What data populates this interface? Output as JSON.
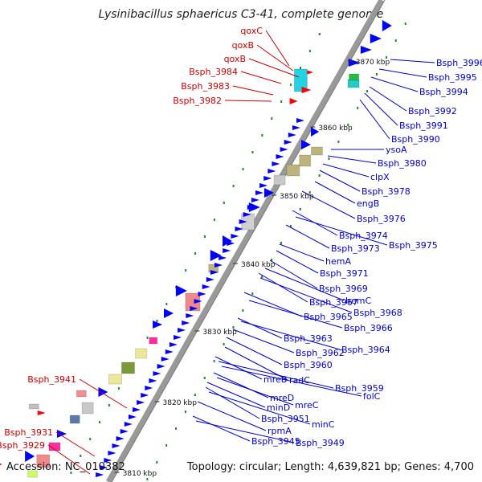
{
  "title": "Lysinibacillus sphaericus C3-41, complete genome",
  "footer": {
    "accession": "Accession: NC_010382",
    "summary": "Topology: circular; Length: 4,639,821 bp; Genes: 4,700"
  },
  "colors": {
    "forward_gene": "#ff0000",
    "reverse_gene": "#0000ff",
    "label_left": "#cc0000",
    "label_right": "#0000cc",
    "backbone": "#999999",
    "tick_dot": "#228822"
  },
  "ticks": [
    {
      "label": "3870 kbp"
    },
    {
      "label": "3860 kbp"
    },
    {
      "label": "3850 kbp"
    },
    {
      "label": "3840 kbp"
    },
    {
      "label": "3830 kbp"
    },
    {
      "label": "3820 kbp"
    },
    {
      "label": "3810 kbp"
    }
  ],
  "labels_left": [
    "qoxC",
    "qoxB",
    "qoxB",
    "Bsph_3984",
    "Bsph_3983",
    "Bsph_3982",
    "Bsph_3941",
    "Bsph_3931",
    "Bsph_3929"
  ],
  "labels_right": [
    "Bsph_3996",
    "Bsph_3995",
    "Bsph_3994",
    "Bsph_3992",
    "Bsph_3991",
    "Bsph_3990",
    "ysoA",
    "Bsph_3980",
    "clpX",
    "Bsph_3978",
    "engB",
    "Bsph_3976",
    "Bsph_3974",
    "Bsph_3975",
    "Bsph_3973",
    "hemA",
    "Bsph_3971",
    "Bsph_3969",
    "hemC",
    "Bsph_3967",
    "Bsph_3968",
    "Bsph_3965",
    "Bsph_3966",
    "Bsph_3963",
    "Bsph_3964",
    "Bsph_3962",
    "Bsph_3960",
    "radC",
    "mreB",
    "Bsph_3959",
    "folC",
    "mreD",
    "mreC",
    "minD",
    "Bsph_3951",
    "minC",
    "rpmA",
    "Bsph_3945",
    "Bsph_3949"
  ]
}
